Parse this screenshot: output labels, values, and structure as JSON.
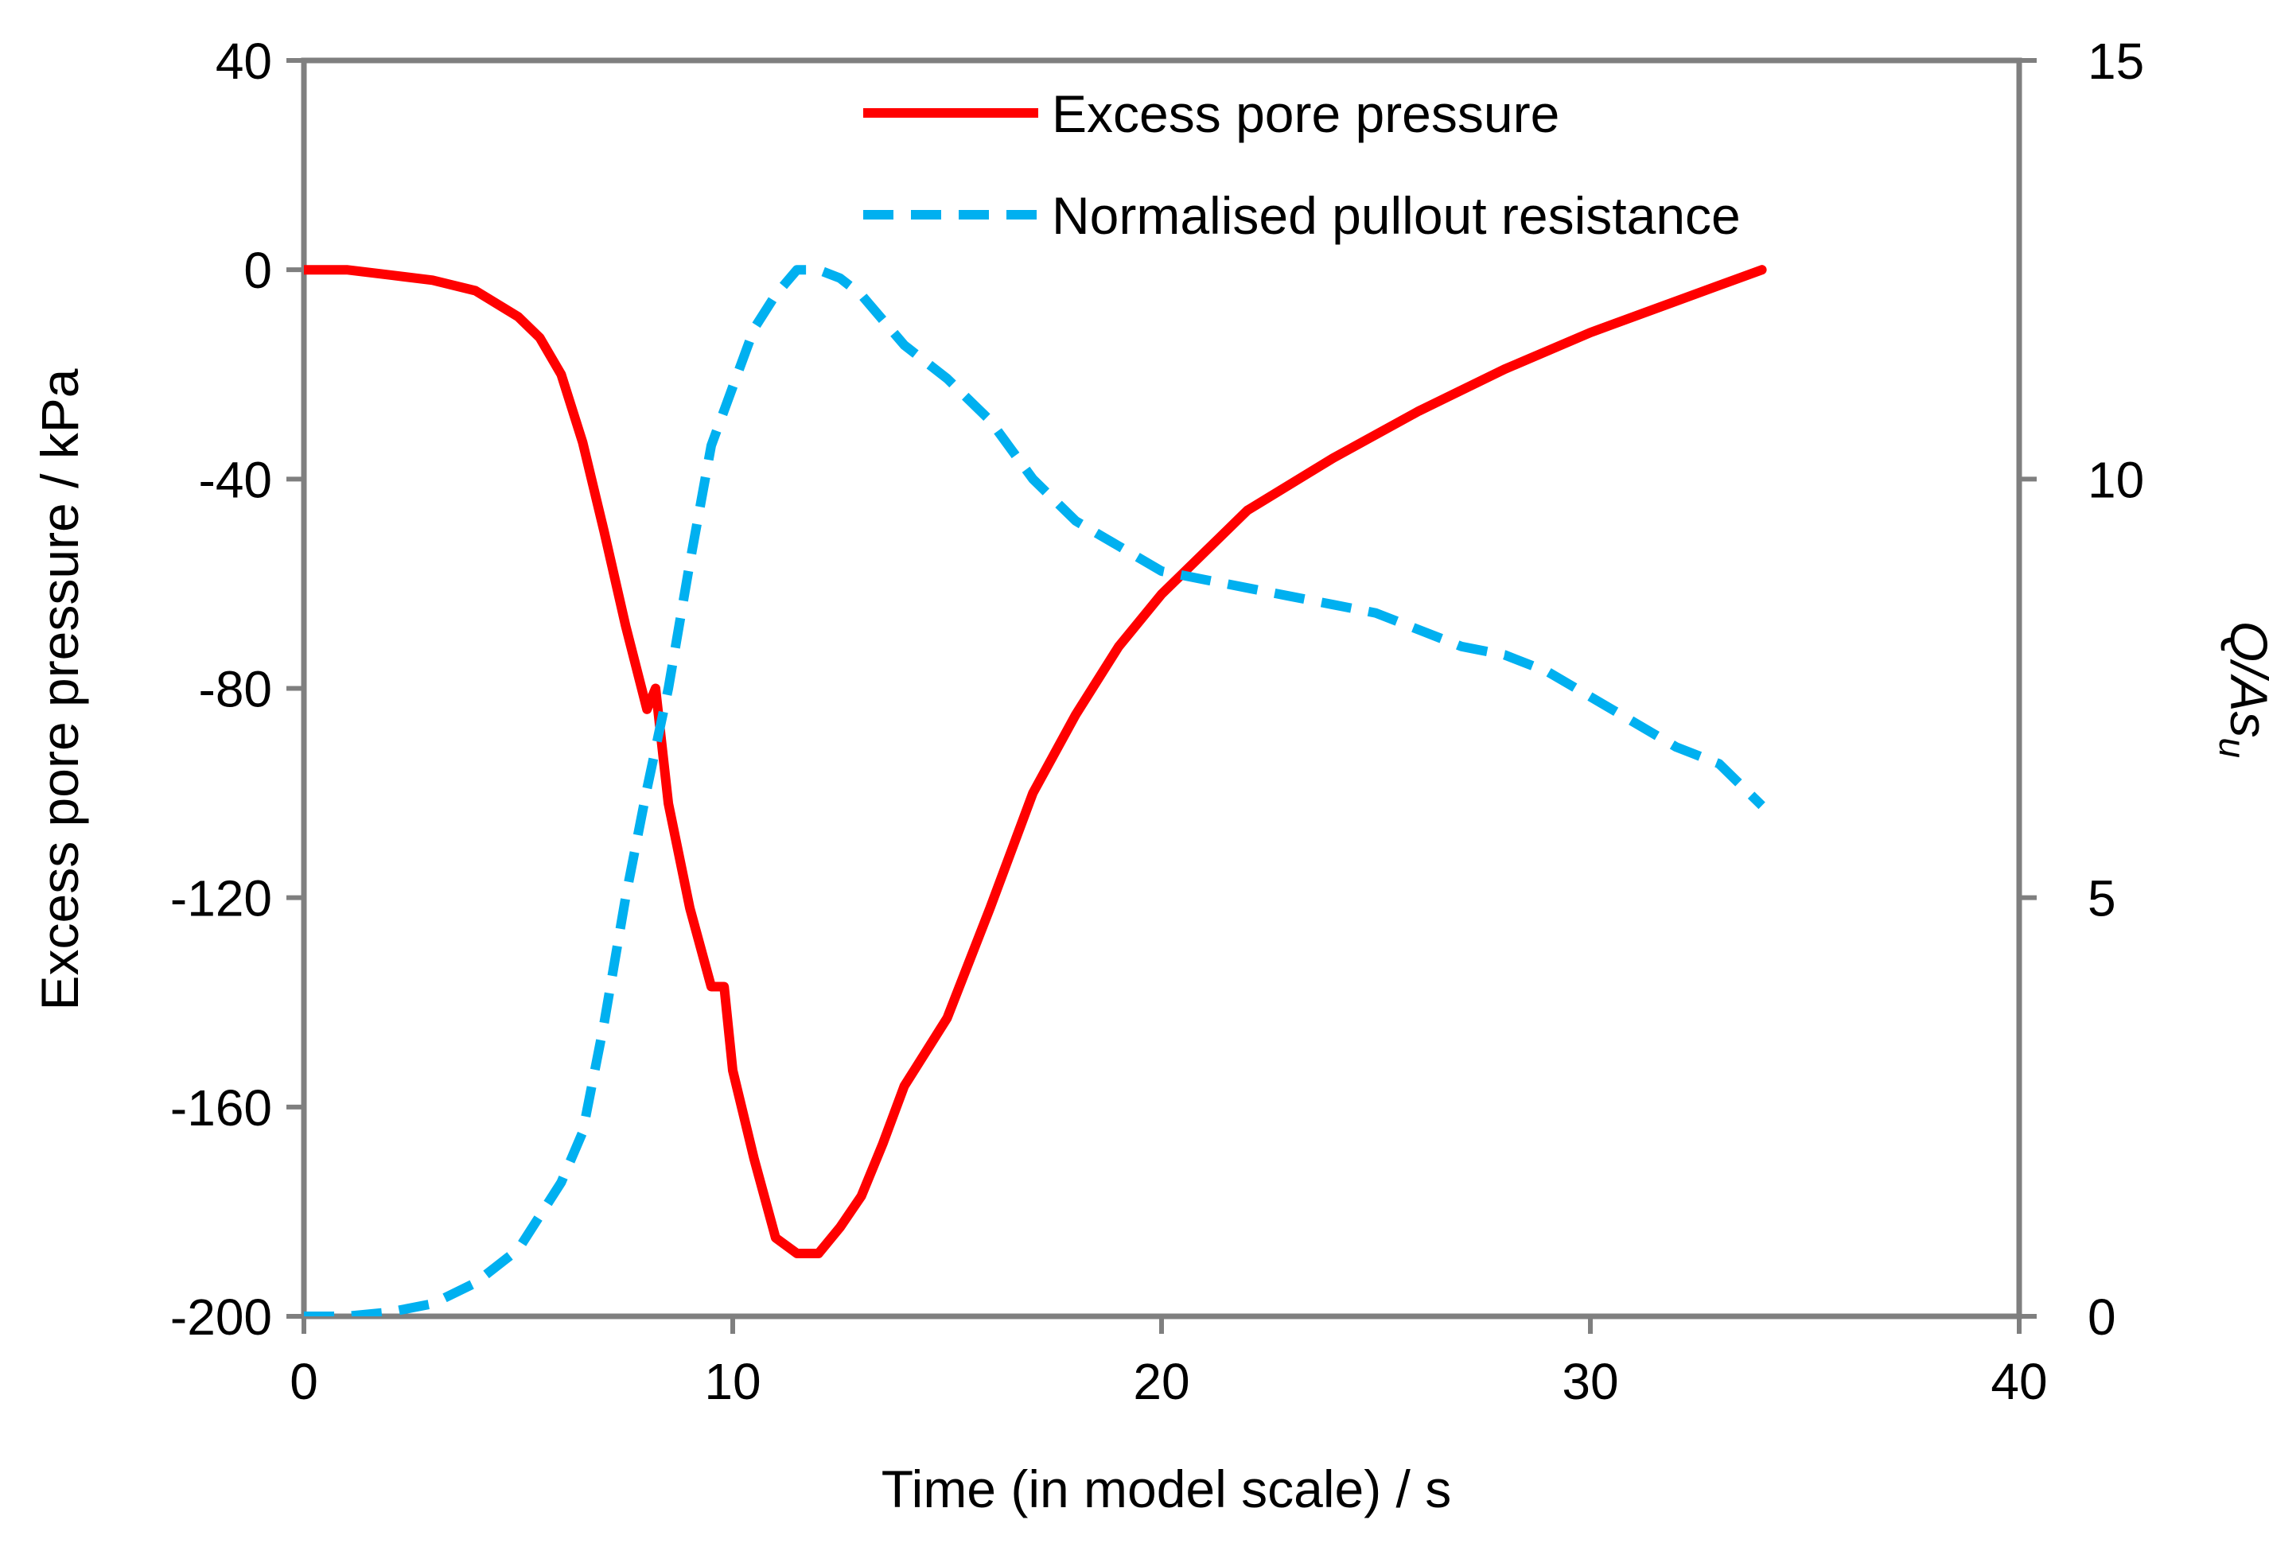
{
  "chart_data": {
    "type": "line",
    "xlabel": "Time (in model scale) / s",
    "ylabel": "Excess pore pressure / kPa",
    "y2label_main": "Q/As",
    "y2label_sub": "u",
    "xlim": [
      0,
      40
    ],
    "ylim": [
      -200,
      40
    ],
    "y2lim": [
      0,
      15
    ],
    "xticks": [
      0,
      10,
      20,
      30,
      40
    ],
    "yticks": [
      40,
      0,
      -40,
      -80,
      -120,
      -160,
      -200
    ],
    "y2ticks": [
      15,
      10,
      5,
      0
    ],
    "legend_position": "top-right",
    "grid": false,
    "colors": {
      "pressure": "#ff0000",
      "resistance": "#00b0f0",
      "frame": "#7f7f7f"
    },
    "series": [
      {
        "name": "Excess pore pressure",
        "axis": "left",
        "style": "solid",
        "x": [
          0,
          1,
          2,
          3,
          4,
          5,
          5.5,
          6,
          6.5,
          7,
          7.5,
          8,
          8.2,
          8.5,
          9,
          9.5,
          9.8,
          10,
          10.5,
          11,
          11.5,
          12,
          12.5,
          13,
          13.5,
          14,
          15,
          16,
          17,
          18,
          19,
          20,
          22,
          24,
          26,
          28,
          30,
          32,
          34
        ],
        "values": [
          0,
          0,
          -1,
          -2,
          -4,
          -9,
          -13,
          -20,
          -33,
          -50,
          -68,
          -84,
          -80,
          -102,
          -122,
          -137,
          -137,
          -153,
          -170,
          -185,
          -188,
          -188,
          -183,
          -177,
          -167,
          -156,
          -143,
          -122,
          -100,
          -85,
          -72,
          -62,
          -46,
          -36,
          -27,
          -19,
          -12,
          -6,
          0
        ]
      },
      {
        "name": "Normalised pullout resistance",
        "axis": "right",
        "style": "dashed",
        "x": [
          0,
          1,
          2,
          3,
          4,
          5,
          6,
          6.5,
          7,
          7.5,
          8,
          8.5,
          9,
          9.5,
          10,
          10.5,
          11,
          11.5,
          12,
          12.5,
          13,
          14,
          15,
          16,
          17,
          18,
          19,
          20,
          21,
          22,
          23,
          24,
          25,
          26,
          27,
          28,
          29,
          30,
          31,
          32,
          33,
          34
        ],
        "values": [
          0,
          0,
          0.05,
          0.15,
          0.4,
          0.8,
          1.6,
          2.2,
          3.5,
          5,
          6.3,
          7.5,
          9,
          10.4,
          11.1,
          11.8,
          12.2,
          12.5,
          12.5,
          12.4,
          12.2,
          11.6,
          11.2,
          10.7,
          10,
          9.5,
          9.2,
          8.9,
          8.8,
          8.7,
          8.6,
          8.5,
          8.4,
          8.2,
          8.0,
          7.9,
          7.7,
          7.4,
          7.1,
          6.8,
          6.6,
          6.1
        ]
      }
    ]
  }
}
